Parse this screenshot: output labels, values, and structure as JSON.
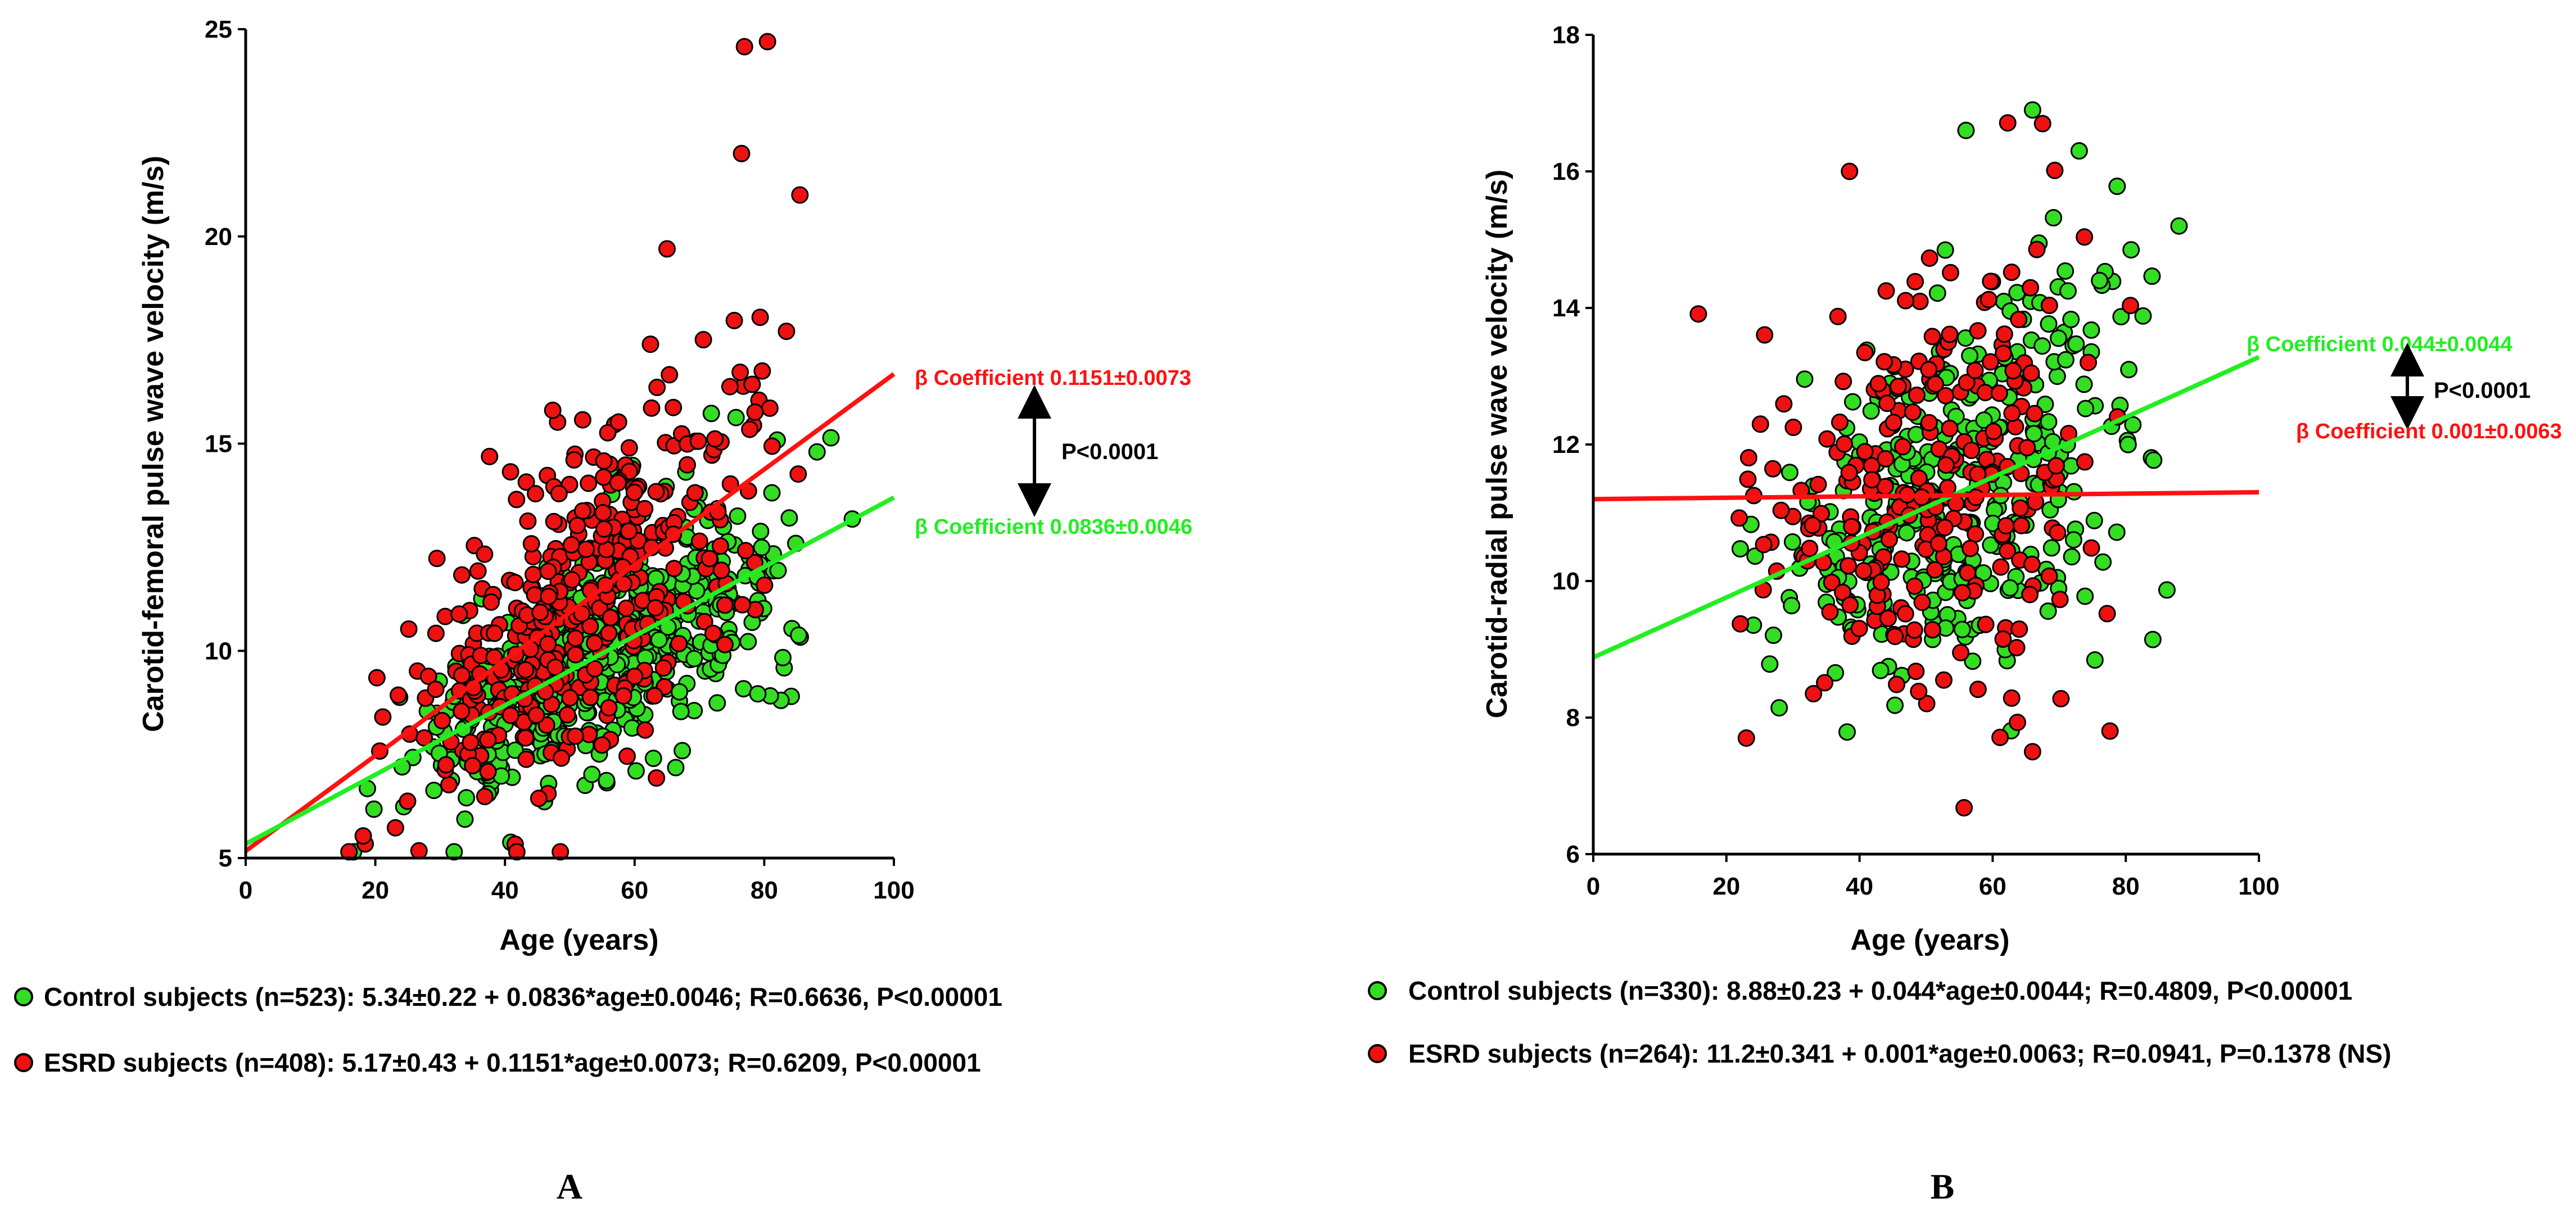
{
  "colors": {
    "control_fill": "#33dd22",
    "esrd_fill": "#ee1111",
    "control_line": "#22ee22",
    "esrd_line": "#ff1111",
    "axis": "#000000"
  },
  "chart_data": [
    {
      "type": "scatter",
      "panel_label": "A",
      "xlabel": "Age (years)",
      "ylabel": "Carotid-femoral pulse wave velocity (m/s)",
      "xlim": [
        0,
        100
      ],
      "ylim": [
        5,
        25
      ],
      "xticks": [
        0,
        20,
        40,
        60,
        80,
        100
      ],
      "yticks": [
        5,
        10,
        15,
        20,
        25
      ],
      "grid": false,
      "series": [
        {
          "name": "Control subjects",
          "color": "#33dd22",
          "n": 523,
          "intercept": 5.34,
          "slope": 0.0836,
          "residual_sd": 1.3,
          "age_range": [
            13,
            97
          ],
          "seed": 11
        },
        {
          "name": "ESRD subjects",
          "color": "#ee1111",
          "n": 408,
          "intercept": 5.17,
          "slope": 0.1151,
          "residual_sd": 2.0,
          "age_range": [
            12,
            92
          ],
          "seed": 29,
          "outliers": [
            [
              80.5,
              24.7
            ],
            [
              76.5,
              22.0
            ],
            [
              85.5,
              21.0
            ],
            [
              65,
              19.7
            ]
          ]
        }
      ],
      "regression_lines": [
        {
          "name": "ESRD fit",
          "intercept": 5.17,
          "slope": 0.1151,
          "x": [
            0,
            100
          ],
          "color": "#ff1111"
        },
        {
          "name": "Control fit",
          "intercept": 5.34,
          "slope": 0.0836,
          "x": [
            0,
            100
          ],
          "color": "#22ee22"
        }
      ],
      "annotations": {
        "esrd_coef": "β Coefficient 0.1151±0.0073",
        "control_coef": "β Coefficient 0.0836±0.0046",
        "p_value": "P<0.0001"
      },
      "legend": [
        {
          "series": "control",
          "text": "Control subjects (n=523): 5.34±0.22 + 0.0836*age±0.0046; R=0.6636, P<0.00001"
        },
        {
          "series": "esrd",
          "text": "ESRD subjects (n=408): 5.17±0.43 + 0.1151*age±0.0073; R=0.6209, P<0.00001"
        }
      ]
    },
    {
      "type": "scatter",
      "panel_label": "B",
      "xlabel": "Age (years)",
      "ylabel": "Carotid-radial pulse wave velocity (m/s)",
      "xlim": [
        0,
        100
      ],
      "ylim": [
        6,
        18
      ],
      "xticks": [
        0,
        20,
        40,
        60,
        80,
        100
      ],
      "yticks": [
        6,
        8,
        10,
        12,
        14,
        16,
        18
      ],
      "grid": false,
      "series": [
        {
          "name": "Control subjects",
          "color": "#33dd22",
          "n": 330,
          "intercept": 8.88,
          "slope": 0.044,
          "residual_sd": 1.25,
          "age_range": [
            15,
            95
          ],
          "seed": 47,
          "outliers": [
            [
              66,
              16.9
            ],
            [
              56,
              16.6
            ],
            [
              73,
              16.3
            ],
            [
              88,
              15.2
            ]
          ]
        },
        {
          "name": "ESRD subjects",
          "color": "#ee1111",
          "n": 264,
          "intercept": 11.2,
          "slope": 0.001,
          "residual_sd": 1.55,
          "age_range": [
            12,
            88
          ],
          "seed": 83,
          "outliers": [
            [
              38.5,
              16.0
            ],
            [
              67.5,
              16.7
            ],
            [
              66,
              7.5
            ],
            [
              23,
              7.7
            ]
          ]
        }
      ],
      "regression_lines": [
        {
          "name": "Control fit",
          "intercept": 8.88,
          "slope": 0.044,
          "x": [
            0,
            100
          ],
          "color": "#22ee22"
        },
        {
          "name": "ESRD fit",
          "intercept": 11.2,
          "slope": 0.001,
          "x": [
            0,
            100
          ],
          "color": "#ff1111"
        }
      ],
      "annotations": {
        "control_coef": "β Coefficient 0.044±0.0044",
        "esrd_coef": "β Coefficient 0.001±0.0063",
        "p_value": "P<0.0001"
      },
      "legend": [
        {
          "series": "control",
          "text": "Control subjects (n=330): 8.88±0.23 + 0.044*age±0.0044; R=0.4809, P<0.00001"
        },
        {
          "series": "esrd",
          "text": "ESRD subjects (n=264): 11.2±0.341 + 0.001*age±0.0063; R=0.0941, P=0.1378 (NS)"
        }
      ]
    }
  ]
}
